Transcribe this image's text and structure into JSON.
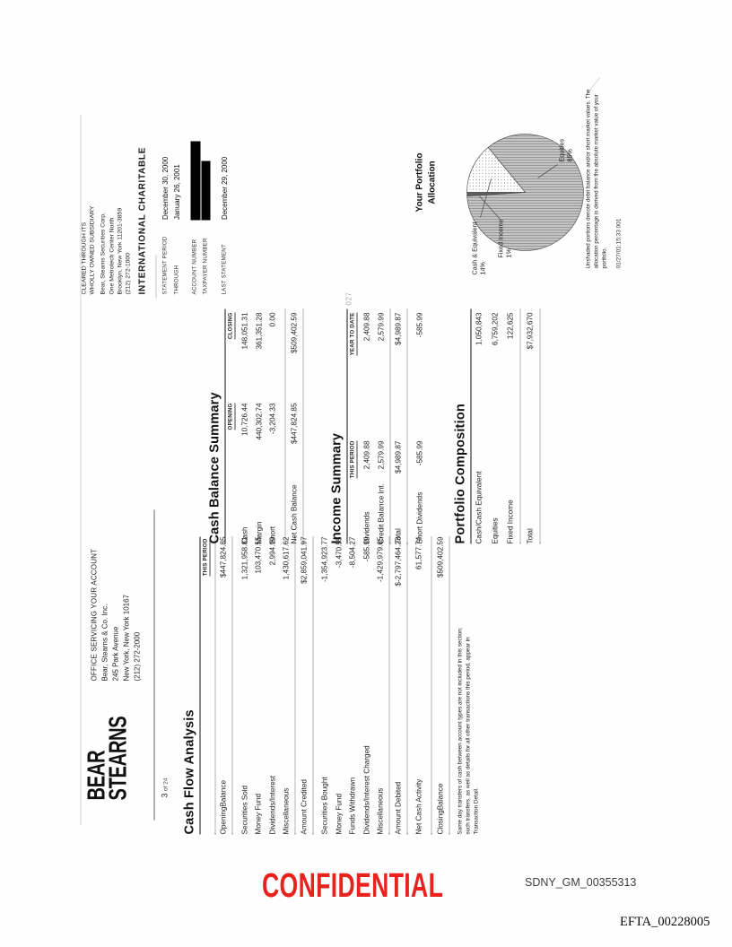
{
  "page": {
    "confidential": "CONFIDENTIAL",
    "stamp_center": "SDNY_GM_00355313",
    "stamp_corner": "EFTA_00228005"
  },
  "colors": {
    "confidential_red": "#e8231d",
    "redaction": "#000000"
  },
  "brand": {
    "name_line1": "BEAR",
    "name_line2": "STEARNS",
    "page_num": "3",
    "page_of": "of 24"
  },
  "office": {
    "heading": "OFFICE SERVICING YOUR ACCOUNT",
    "line1": "Bear, Stearns & Co. Inc.",
    "line2": "245 Park Avenue",
    "line3": "New York, New York 10167",
    "line4": "(212) 272-2000"
  },
  "clearing": {
    "line1": "CLEARED THROUGH ITS",
    "line2": "WHOLLY OWNED SUBSIDIARY",
    "line3": "Bear, Stearns Securities Corp.",
    "line4": "One Metrotech Center North",
    "line5": "Brooklyn, New York 11201-3859",
    "line6": "(212) 272-1000"
  },
  "account_name": "INTERNATIONAL CHARITABLE",
  "meta": {
    "statement_period_label": "STATEMENT PERIOD",
    "statement_period": "December 30, 2000",
    "through_label": "THROUGH",
    "through": "January 26, 2001",
    "account_number_label": "ACCOUNT NUMBER",
    "taxpayer_number_label": "TAXPAYER NUMBER",
    "last_statement_label": "LAST STATEMENT",
    "last_statement": "December 29, 2000"
  },
  "cash_flow": {
    "title": "Cash Flow Analysis",
    "col_header": "THIS PERIOD",
    "rows": [
      {
        "label": "OpeningBalance",
        "values": [
          "$447,824.85"
        ],
        "emph": true
      },
      {
        "label": "Securities Sold",
        "values": [
          "1,321,958.81"
        ],
        "gap": true
      },
      {
        "label": "Money Fund",
        "values": [
          "103,470.55"
        ]
      },
      {
        "label": "Dividends/Interest",
        "values": [
          "2,994.99"
        ]
      },
      {
        "label": "Miscellaneous",
        "values": [
          "1,430,617.62"
        ]
      },
      {
        "label": "Amount Credited",
        "values": [
          "$2,859,041.97"
        ],
        "emph": true
      },
      {
        "label": "Securities Bought",
        "values": [
          "-1,354,923.77"
        ],
        "gap": true
      },
      {
        "label": "Money Fund",
        "values": [
          "-3,470.55"
        ]
      },
      {
        "label": "Funds Withdrawn",
        "values": [
          "-8,504.27"
        ]
      },
      {
        "label": "Dividends/Interest Charged",
        "values": [
          "-585.99"
        ]
      },
      {
        "label": "Miscellaneous",
        "values": [
          "-1,429,979.65"
        ]
      },
      {
        "label": "Amount Debited",
        "values": [
          "$-2,797,464.23"
        ],
        "emph": true
      },
      {
        "label": "Net Cash Activity",
        "values": [
          "61,577.74"
        ],
        "gap": true
      },
      {
        "label": "ClosingBalance",
        "values": [
          "$509,402.59"
        ],
        "emph": true,
        "gap": true
      }
    ],
    "footnote": "Same day transfers of cash between account types are not included in this section; such transfers, as well as details for all other transactions this period, appear in Transaction Detail."
  },
  "cash_balance": {
    "title": "Cash Balance Summary",
    "col_headers": [
      "OPENING",
      "CLOSING"
    ],
    "rows": [
      {
        "label": "Cash",
        "values": [
          "10,726.44",
          "148,051.31"
        ]
      },
      {
        "label": "Margin",
        "values": [
          "440,302.74",
          "361,351.28"
        ]
      },
      {
        "label": "Short",
        "values": [
          "-3,204.33",
          "0.00"
        ]
      },
      {
        "label": "Net Cash Balance",
        "values": [
          "$447,824.85",
          "$509,402.59"
        ],
        "emph": true,
        "gap": true
      }
    ]
  },
  "income_summary": {
    "title": "Income Summary",
    "col_headers": [
      "THIS PERIOD",
      "YEAR TO DATE"
    ],
    "rows": [
      {
        "label": "Dividends",
        "values": [
          "2,409.88",
          "2,409.88"
        ]
      },
      {
        "label": "Credit Balance Int.",
        "values": [
          "2,579.99",
          "2,579.99"
        ]
      },
      {
        "label": "Total",
        "values": [
          "$4,989.87",
          "$4,989.87"
        ],
        "emph": true
      },
      {
        "label": "Short Dividends",
        "values": [
          "-585.99",
          "-585.99"
        ],
        "gap": true
      }
    ]
  },
  "portfolio_composition": {
    "title": "Portfolio Composition",
    "rows": [
      {
        "label": "Cash/Cash Equivalent",
        "values": [
          "1,050,843"
        ]
      },
      {
        "label": "Equities",
        "values": [
          "6,759,202"
        ]
      },
      {
        "label": "Fixed Income",
        "values": [
          "122,625"
        ]
      },
      {
        "label": "Total",
        "values": [
          "$7,932,670"
        ],
        "emph": true
      }
    ]
  },
  "allocation": {
    "title_line1": "Your Portfolio",
    "title_line2": "Allocation",
    "footnote": "Unshaded portions denote debit balance and/or short market values. The allocation percentage is derived from the absolute market value of your portfolio.",
    "timestamp": "01/27/01:15:33  001"
  },
  "page_marker": "027",
  "chart_data": {
    "type": "pie",
    "title": "Your Portfolio Allocation",
    "slices": [
      {
        "label": "Equities",
        "value": 85,
        "pct_label": "85%"
      },
      {
        "label": "Cash & Equivalent",
        "value": 14,
        "pct_label": "14%"
      },
      {
        "label": "Fixed Income",
        "value": 1,
        "pct_label": "1%"
      }
    ]
  }
}
